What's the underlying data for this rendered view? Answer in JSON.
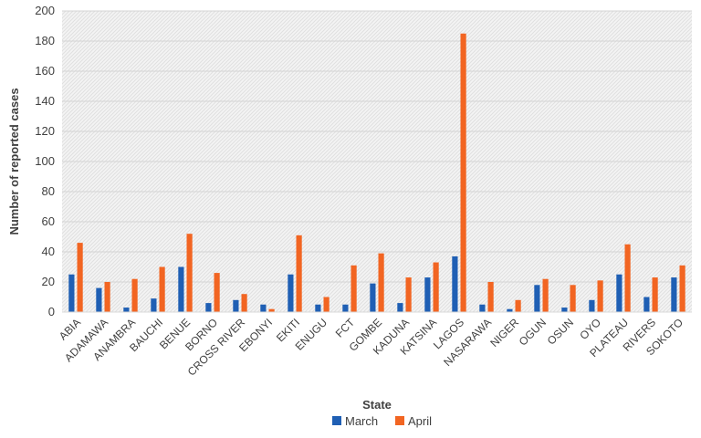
{
  "chart_data": {
    "type": "bar",
    "title": "",
    "xlabel": "State",
    "ylabel": "Number of reported cases",
    "ylim": [
      0,
      200
    ],
    "yticks": [
      0,
      20,
      40,
      60,
      80,
      100,
      120,
      140,
      160,
      180,
      200
    ],
    "grid": true,
    "legend": "bottom",
    "categories": [
      "ABIA",
      "ADAMAWA",
      "ANAMBRA",
      "BAUCHI",
      "BENUE",
      "BORNO",
      "CROSS RIVER",
      "EBONYI",
      "EKITI",
      "ENUGU",
      "FCT",
      "GOMBE",
      "KADUNA",
      "KATSINA",
      "LAGOS",
      "NASARAWA",
      "NIGER",
      "OGUN",
      "OSUN",
      "OYO",
      "PLATEAU",
      "RIVERS",
      "SOKOTO"
    ],
    "series": [
      {
        "name": "March",
        "color": "#1f5fb4",
        "values": [
          25,
          16,
          3,
          9,
          30,
          6,
          8,
          5,
          25,
          5,
          5,
          19,
          6,
          23,
          37,
          5,
          2,
          18,
          3,
          8,
          25,
          10,
          23
        ]
      },
      {
        "name": "April",
        "color": "#f26522",
        "values": [
          46,
          20,
          22,
          30,
          52,
          26,
          12,
          2,
          51,
          10,
          31,
          39,
          23,
          33,
          185,
          20,
          8,
          22,
          18,
          21,
          45,
          23,
          31
        ]
      }
    ]
  }
}
